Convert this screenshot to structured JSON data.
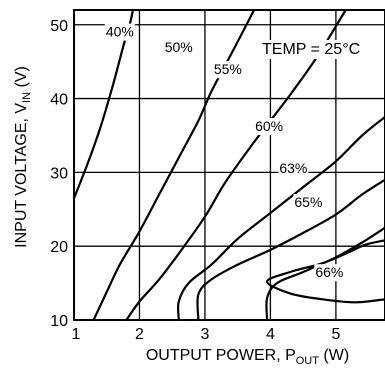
{
  "chart_data": {
    "type": "line",
    "xlabel": "OUTPUT POWER, P",
    "xlabel_sub": "OUT",
    "xlabel_unit": " (W)",
    "ylabel": "INPUT VOLTAGE, V",
    "ylabel_sub": "IN",
    "ylabel_unit": " (V)",
    "xlim": [
      1,
      5.75
    ],
    "ylim": [
      10,
      52
    ],
    "x_ticks": [
      1,
      2,
      3,
      4,
      5
    ],
    "y_ticks": [
      10,
      20,
      30,
      40,
      50
    ],
    "grid": true,
    "annotation": "TEMP = 25°C",
    "series": [
      {
        "name": "40%",
        "label_pos": [
          1.7,
          48.4
        ],
        "points": [
          [
            1.0,
            26.5
          ],
          [
            1.2,
            31
          ],
          [
            1.4,
            36
          ],
          [
            1.6,
            42
          ],
          [
            1.75,
            47
          ],
          [
            1.85,
            50
          ],
          [
            1.9,
            52
          ]
        ]
      },
      {
        "name": "50%",
        "label_pos": [
          2.6,
          46.3
        ],
        "points": [
          [
            1.3,
            10
          ],
          [
            1.5,
            13.8
          ],
          [
            1.7,
            17.5
          ],
          [
            2.0,
            22
          ],
          [
            2.3,
            27
          ],
          [
            2.6,
            32
          ],
          [
            2.9,
            37
          ],
          [
            3.1,
            41
          ],
          [
            3.4,
            46
          ],
          [
            3.75,
            52
          ]
        ]
      },
      {
        "name": "55%",
        "label_pos": [
          3.35,
          43.3
        ],
        "points": [
          [
            1.8,
            10
          ],
          [
            2.0,
            12.5
          ],
          [
            2.3,
            15.5
          ],
          [
            2.6,
            19
          ],
          [
            3.0,
            24
          ],
          [
            3.3,
            28.5
          ],
          [
            3.7,
            33.5
          ],
          [
            4.0,
            37
          ],
          [
            4.3,
            40.5
          ],
          [
            4.7,
            45.5
          ],
          [
            5.15,
            52
          ]
        ]
      },
      {
        "name": "60%",
        "label_pos": [
          3.98,
          35.6
        ],
        "points": [
          [
            2.6,
            10
          ],
          [
            2.6,
            12.5
          ],
          [
            2.75,
            15
          ],
          [
            3.1,
            17.5
          ],
          [
            3.5,
            21
          ],
          [
            4.0,
            24.5
          ],
          [
            4.5,
            28
          ],
          [
            5.0,
            31.5
          ],
          [
            5.4,
            35
          ],
          [
            5.75,
            37.5
          ]
        ]
      },
      {
        "name": "63%",
        "label_pos": [
          4.35,
          29.9
        ],
        "points": [
          [
            2.9,
            10
          ],
          [
            2.9,
            13.5
          ],
          [
            3.1,
            15.5
          ],
          [
            3.5,
            17.5
          ],
          [
            4.0,
            19.5
          ],
          [
            4.5,
            21.8
          ],
          [
            5.0,
            24.3
          ],
          [
            5.4,
            27
          ],
          [
            5.75,
            29
          ]
        ]
      },
      {
        "name": "65%",
        "label_pos": [
          4.58,
          25.3
        ],
        "points": [
          [
            3.95,
            10
          ],
          [
            3.95,
            13
          ],
          [
            4.1,
            15
          ],
          [
            4.5,
            16.5
          ],
          [
            5.0,
            18.5
          ],
          [
            5.4,
            20.5
          ],
          [
            5.75,
            22.5
          ]
        ]
      },
      {
        "name": "66%",
        "label_pos": [
          4.9,
          15.8
        ],
        "closed": true,
        "points": [
          [
            5.75,
            12.8
          ],
          [
            5.3,
            12.4
          ],
          [
            4.8,
            12.8
          ],
          [
            4.3,
            13.6
          ],
          [
            3.95,
            15.2
          ],
          [
            4.3,
            16.5
          ],
          [
            4.8,
            17.7
          ],
          [
            5.2,
            19.2
          ],
          [
            5.45,
            20.2
          ],
          [
            5.75,
            20.8
          ]
        ]
      }
    ]
  }
}
